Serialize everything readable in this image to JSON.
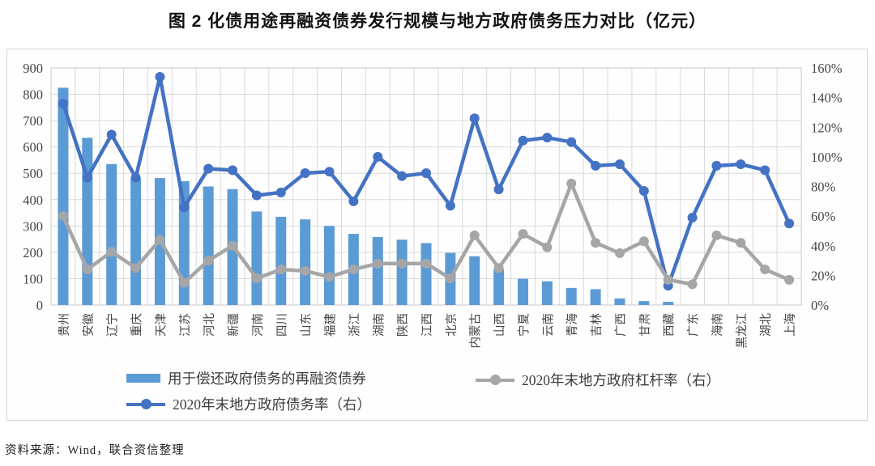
{
  "title": "图 2   化债用途再融资债券发行规模与地方政府债务压力对比（亿元）",
  "source_note": "资料来源：Wind，联合资信整理",
  "legend": {
    "bar_label": "用于偿还政府债务的再融资债券",
    "debt_line_label": "2020年末地方政府债务率（右）",
    "leverage_line_label": "2020年末地方政府杠杆率（右）"
  },
  "colors": {
    "bar": "#5B9BD5",
    "debt_line": "#4472C4",
    "leverage_line": "#A6A6A6",
    "grid": "#D9D9D9",
    "plot_border": "#C9C9C9",
    "axis_text": "#454545"
  },
  "chart_data": {
    "type": "bar",
    "title": "图 2 化债用途再融资债券发行规模与地方政府债务压力对比（亿元）",
    "categories": [
      "贵州",
      "安徽",
      "辽宁",
      "重庆",
      "天津",
      "江苏",
      "河北",
      "新疆",
      "河南",
      "四川",
      "山东",
      "福建",
      "浙江",
      "湖南",
      "陕西",
      "江西",
      "北京",
      "内蒙古",
      "山西",
      "宁夏",
      "云南",
      "青海",
      "吉林",
      "广西",
      "甘肃",
      "西藏",
      "广东",
      "海南",
      "黑龙江",
      "湖北",
      "上海"
    ],
    "series": [
      {
        "name": "用于偿还政府债务的再融资债券",
        "type": "bar",
        "axis": "left",
        "color": "#5B9BD5",
        "values": [
          825,
          635,
          535,
          480,
          482,
          470,
          450,
          440,
          355,
          335,
          325,
          300,
          270,
          258,
          248,
          235,
          198,
          185,
          135,
          100,
          90,
          65,
          60,
          25,
          15,
          12,
          0,
          0,
          0,
          0,
          0
        ]
      },
      {
        "name": "2020年末地方政府债务率（右）",
        "type": "line",
        "axis": "right",
        "color": "#4472C4",
        "values": [
          136,
          86,
          115,
          86,
          154,
          66,
          92,
          91,
          74,
          76,
          89,
          90,
          70,
          100,
          87,
          89,
          67,
          126,
          78,
          111,
          113,
          110,
          94,
          95,
          77,
          13,
          59,
          94,
          95,
          91,
          55
        ]
      },
      {
        "name": "2020年末地方政府杠杆率（右）",
        "type": "line",
        "axis": "right",
        "color": "#A6A6A6",
        "values": [
          60,
          24,
          36,
          25,
          44,
          15,
          30,
          40,
          18,
          24,
          23,
          19,
          24,
          28,
          28,
          28,
          18,
          47,
          25,
          48,
          39,
          82,
          42,
          35,
          43,
          17,
          14,
          47,
          42,
          24,
          17
        ]
      }
    ],
    "left_axis": {
      "min": 0,
      "max": 900,
      "step": 100,
      "ticks": [
        "0",
        "100",
        "200",
        "300",
        "400",
        "500",
        "600",
        "700",
        "800",
        "900"
      ]
    },
    "right_axis": {
      "min": 0,
      "max": 160,
      "step": 20,
      "ticks": [
        "0%",
        "20%",
        "40%",
        "60%",
        "80%",
        "100%",
        "120%",
        "140%",
        "160%"
      ]
    },
    "grid": true,
    "legend_position": "bottom",
    "xlabel": "",
    "ylabel_left": "亿元",
    "ylabel_right": "%"
  }
}
